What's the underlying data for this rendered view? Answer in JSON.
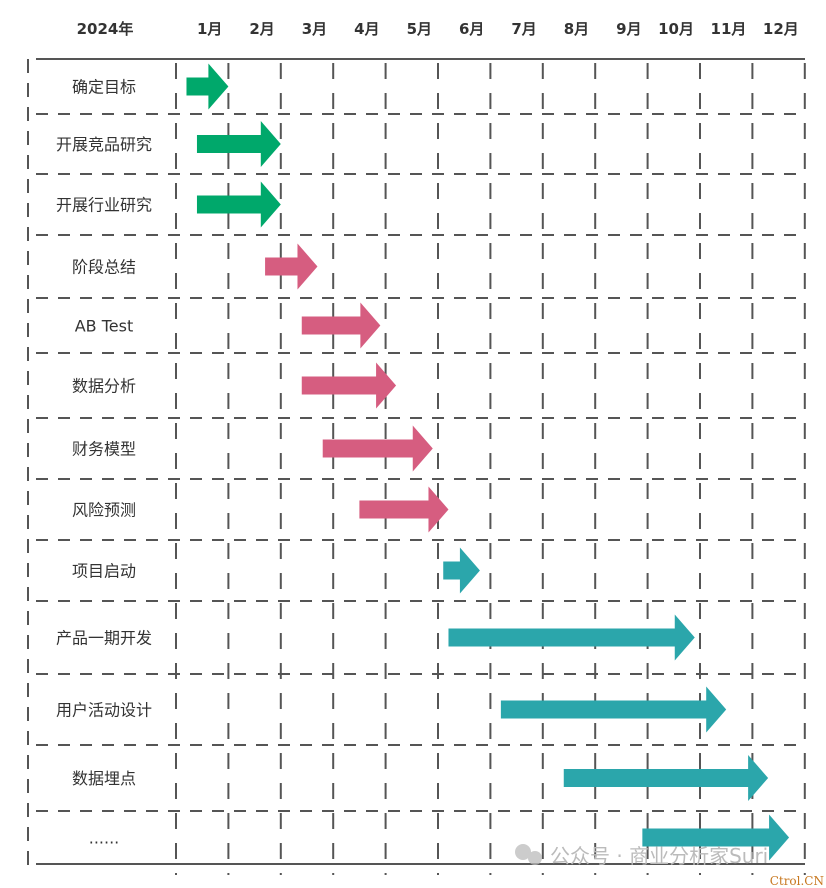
{
  "chart_data": {
    "type": "gantt",
    "year_label": "2024年",
    "months": [
      "1月",
      "2月",
      "3月",
      "4月",
      "5月",
      "6月",
      "7月",
      "8月",
      "9月",
      "10月",
      "11月",
      "12月"
    ],
    "colors": {
      "green": "#00a86b",
      "pink": "#d65d80",
      "teal": "#2ba6ab"
    },
    "tasks": [
      {
        "label": "确定目标",
        "start": 0.2,
        "end": 1.0,
        "color": "green"
      },
      {
        "label": "开展竞品研究",
        "start": 0.4,
        "end": 2.0,
        "color": "green"
      },
      {
        "label": "开展行业研究",
        "start": 0.4,
        "end": 2.0,
        "color": "green"
      },
      {
        "label": "阶段总结",
        "start": 1.7,
        "end": 2.7,
        "color": "pink"
      },
      {
        "label": "AB Test",
        "start": 2.4,
        "end": 3.9,
        "color": "pink"
      },
      {
        "label": "数据分析",
        "start": 2.4,
        "end": 4.2,
        "color": "pink"
      },
      {
        "label": "财务模型",
        "start": 2.8,
        "end": 4.9,
        "color": "pink"
      },
      {
        "label": "风险预测",
        "start": 3.5,
        "end": 5.2,
        "color": "pink"
      },
      {
        "label": "项目启动",
        "start": 5.1,
        "end": 5.8,
        "color": "teal"
      },
      {
        "label": "产品一期开发",
        "start": 5.2,
        "end": 9.9,
        "color": "teal"
      },
      {
        "label": "用户活动设计",
        "start": 6.2,
        "end": 10.5,
        "color": "teal"
      },
      {
        "label": "数据埋点",
        "start": 7.4,
        "end": 11.3,
        "color": "teal"
      },
      {
        "label": "......",
        "start": 8.9,
        "end": 11.7,
        "color": "teal"
      }
    ]
  },
  "watermark": "公众号 · 商业分析家Suri",
  "corner_mark": "Ctrol.CN"
}
